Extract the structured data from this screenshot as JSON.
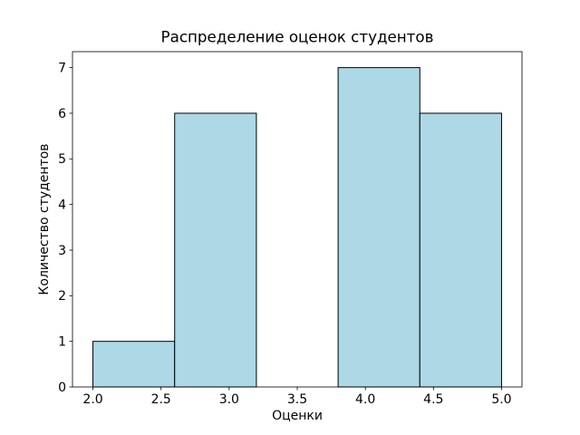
{
  "chart_data": {
    "type": "bar",
    "title": "Распределение оценок студентов",
    "xlabel": "Оценки",
    "ylabel": "Количество студентов",
    "bin_edges": [
      2.0,
      2.6,
      3.2,
      3.8,
      4.4,
      5.0
    ],
    "counts": [
      1,
      6,
      0,
      7,
      6
    ],
    "xticks": [
      2.0,
      2.5,
      3.0,
      3.5,
      4.0,
      4.5,
      5.0
    ],
    "xtick_labels": [
      "2.0",
      "2.5",
      "3.0",
      "3.5",
      "4.0",
      "4.5",
      "5.0"
    ],
    "yticks": [
      0,
      1,
      2,
      3,
      4,
      5,
      6,
      7
    ],
    "ytick_labels": [
      "0",
      "1",
      "2",
      "3",
      "4",
      "5",
      "6",
      "7"
    ],
    "xlim": [
      1.85,
      5.15
    ],
    "ylim": [
      0,
      7.35
    ],
    "grid": false,
    "legend_position": "none",
    "colors": {
      "bar_fill": "#ADD8E6",
      "bar_edge": "#000000",
      "axis": "#000000",
      "text": "#000000",
      "background": "#FFFFFF"
    }
  }
}
